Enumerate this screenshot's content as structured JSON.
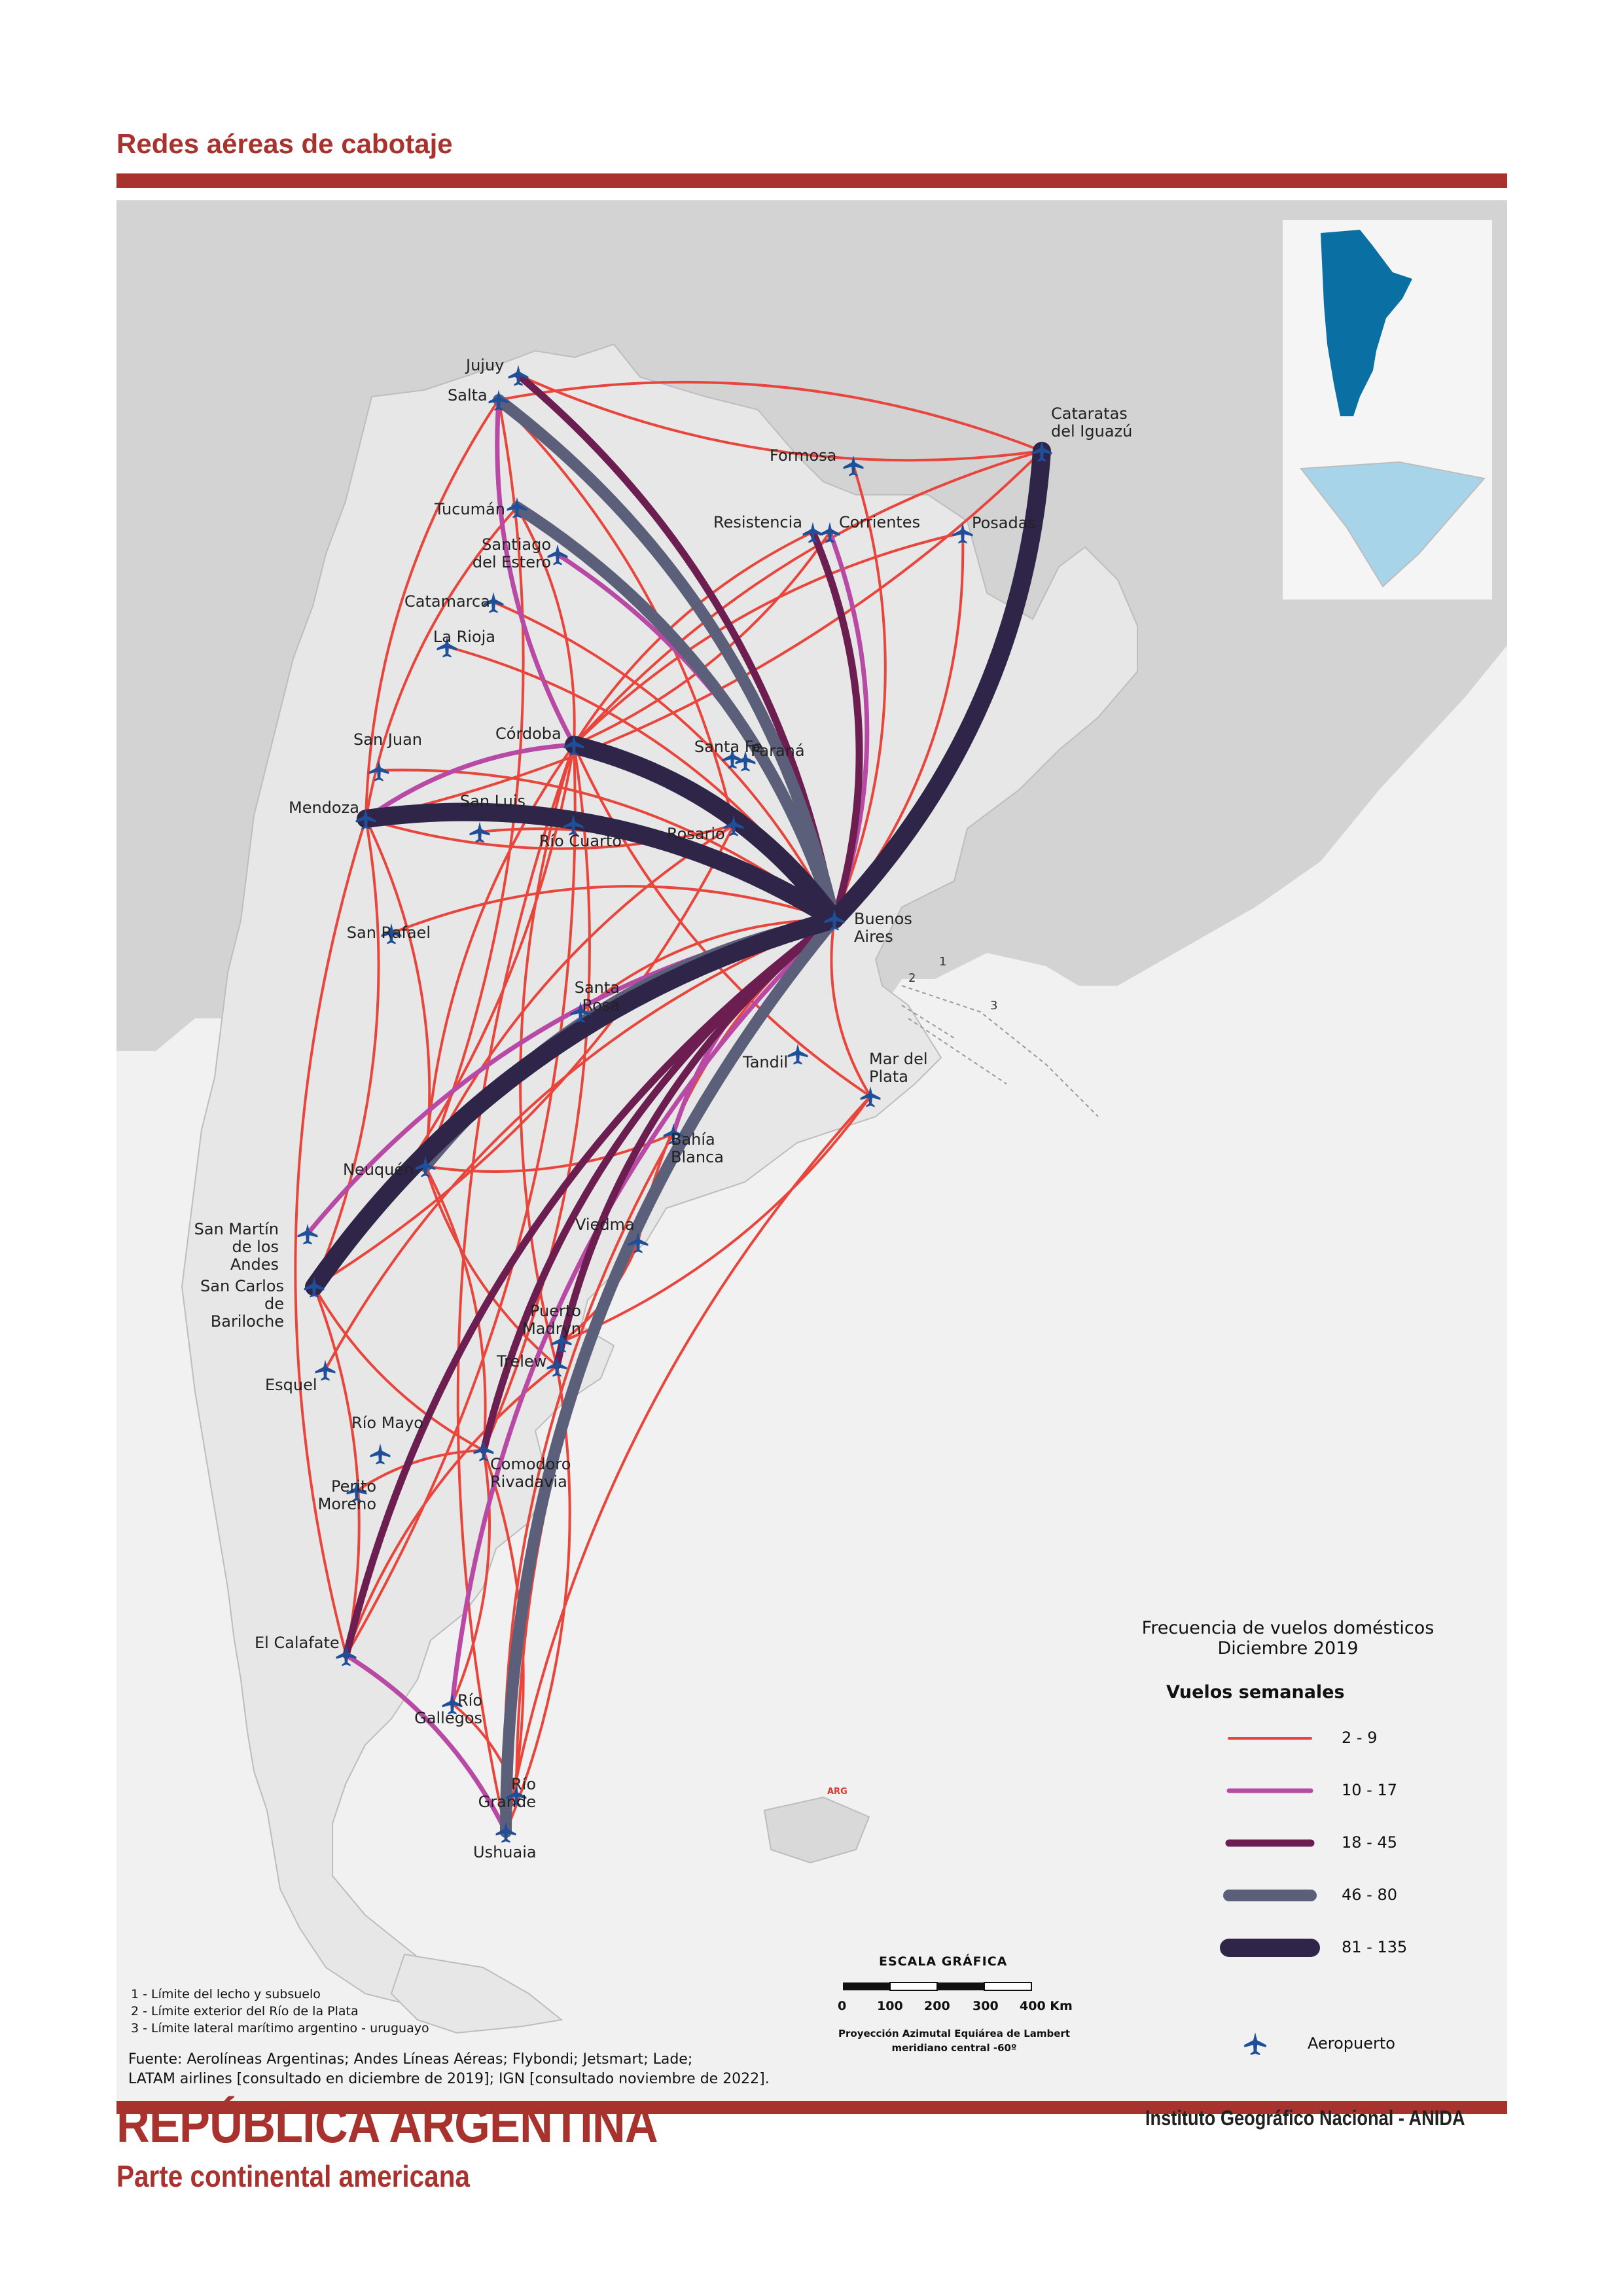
{
  "header": {
    "title": "Redes aéreas de cabotaje"
  },
  "footer": {
    "country": "REPÚBLICA ARGENTINA",
    "part": "Parte continental americana",
    "institute": "Instituto Geográfico Nacional - ANIDA"
  },
  "cities": [
    {
      "id": "jujuy",
      "label": "Jujuy"
    },
    {
      "id": "salta",
      "label": "Salta"
    },
    {
      "id": "cataratas",
      "label": "Cataratas del Iguazú"
    },
    {
      "id": "formosa",
      "label": "Formosa"
    },
    {
      "id": "resistencia",
      "label": "Resistencia"
    },
    {
      "id": "corrientes",
      "label": "Corrientes"
    },
    {
      "id": "posadas",
      "label": "Posadas"
    },
    {
      "id": "tucuman",
      "label": "Tucumán"
    },
    {
      "id": "santiago",
      "label": "Santiago del Estero"
    },
    {
      "id": "catamarca",
      "label": "Catamarca"
    },
    {
      "id": "larioja",
      "label": "La Rioja"
    },
    {
      "id": "cordoba",
      "label": "Córdoba"
    },
    {
      "id": "santafe",
      "label": "Santa Fe"
    },
    {
      "id": "parana",
      "label": "Paraná"
    },
    {
      "id": "sanjuan",
      "label": "San Juan"
    },
    {
      "id": "mendoza",
      "label": "Mendoza"
    },
    {
      "id": "sanluis",
      "label": "San Luis"
    },
    {
      "id": "riocuarto",
      "label": "Río Cuarto"
    },
    {
      "id": "rosario",
      "label": "Rosario"
    },
    {
      "id": "bsas",
      "label": "Buenos Aires"
    },
    {
      "id": "sanrafael",
      "label": "San Rafael"
    },
    {
      "id": "santarosa",
      "label": "Santa Rosa"
    },
    {
      "id": "tandil",
      "label": "Tandil"
    },
    {
      "id": "mardelplata",
      "label": "Mar del Plata"
    },
    {
      "id": "bahiablanca",
      "label": "Bahía Blanca"
    },
    {
      "id": "neuquen",
      "label": "Neuquén"
    },
    {
      "id": "sanmartin",
      "label": "San Martín de los Andes"
    },
    {
      "id": "viedma",
      "label": "Viedma"
    },
    {
      "id": "bariloche",
      "label": "San Carlos de Bariloche"
    },
    {
      "id": "madryn",
      "label": "Puerto Madryn"
    },
    {
      "id": "trelew",
      "label": "Trelew"
    },
    {
      "id": "esquel",
      "label": "Esquel"
    },
    {
      "id": "riomayo",
      "label": "Río Mayo"
    },
    {
      "id": "comodoro",
      "label": "Comodoro Rivadavia"
    },
    {
      "id": "peritomoreno",
      "label": "Perito Moreno"
    },
    {
      "id": "calafate",
      "label": "El Calafate"
    },
    {
      "id": "riogallegos",
      "label": "Río Gallegos"
    },
    {
      "id": "riogrande",
      "label": "Río Grande"
    },
    {
      "id": "ushuaia",
      "label": "Ushuaia"
    }
  ],
  "routes": [
    {
      "from": "bsas",
      "to": "cataratas",
      "cls": 5
    },
    {
      "from": "bsas",
      "to": "mendoza",
      "cls": 5
    },
    {
      "from": "bsas",
      "to": "cordoba",
      "cls": 5
    },
    {
      "from": "bsas",
      "to": "bariloche",
      "cls": 5
    },
    {
      "from": "bsas",
      "to": "salta",
      "cls": 4
    },
    {
      "from": "bsas",
      "to": "tucuman",
      "cls": 4
    },
    {
      "from": "bsas",
      "to": "neuquen",
      "cls": 4
    },
    {
      "from": "bsas",
      "to": "ushuaia",
      "cls": 4
    },
    {
      "from": "bsas",
      "to": "jujuy",
      "cls": 3
    },
    {
      "from": "bsas",
      "to": "resistencia",
      "cls": 3
    },
    {
      "from": "bsas",
      "to": "calafate",
      "cls": 3
    },
    {
      "from": "bsas",
      "to": "comodoro",
      "cls": 3
    },
    {
      "from": "bsas",
      "to": "trelew",
      "cls": 3
    },
    {
      "from": "bsas",
      "to": "riogallegos",
      "cls": 2
    },
    {
      "from": "bsas",
      "to": "corrientes",
      "cls": 2
    },
    {
      "from": "bsas",
      "to": "santiago",
      "cls": 2
    },
    {
      "from": "bsas",
      "to": "bahiablanca",
      "cls": 2
    },
    {
      "from": "mendoza",
      "to": "cordoba",
      "cls": 2
    },
    {
      "from": "salta",
      "to": "cordoba",
      "cls": 2
    },
    {
      "from": "calafate",
      "to": "ushuaia",
      "cls": 2
    },
    {
      "from": "bsas",
      "to": "sanmartin",
      "cls": 2
    },
    {
      "from": "bsas",
      "to": "posadas",
      "cls": 1
    },
    {
      "from": "bsas",
      "to": "formosa",
      "cls": 1
    },
    {
      "from": "bsas",
      "to": "sanjuan",
      "cls": 1
    },
    {
      "from": "bsas",
      "to": "larioja",
      "cls": 1
    },
    {
      "from": "bsas",
      "to": "catamarca",
      "cls": 1
    },
    {
      "from": "bsas",
      "to": "sanluis",
      "cls": 1
    },
    {
      "from": "bsas",
      "to": "santarosa",
      "cls": 1
    },
    {
      "from": "bsas",
      "to": "viedma",
      "cls": 1
    },
    {
      "from": "bsas",
      "to": "esquel",
      "cls": 1
    },
    {
      "from": "bsas",
      "to": "riogrande",
      "cls": 1
    },
    {
      "from": "bsas",
      "to": "mardelplata",
      "cls": 1
    },
    {
      "from": "bsas",
      "to": "sanrafael",
      "cls": 1
    },
    {
      "from": "cordoba",
      "to": "cataratas",
      "cls": 1
    },
    {
      "from": "cordoba",
      "to": "ushuaia",
      "cls": 1
    },
    {
      "from": "cordoba",
      "to": "bariloche",
      "cls": 1
    },
    {
      "from": "cordoba",
      "to": "neuquen",
      "cls": 1
    },
    {
      "from": "cordoba",
      "to": "comodoro",
      "cls": 1
    },
    {
      "from": "cordoba",
      "to": "trelew",
      "cls": 1
    },
    {
      "from": "cordoba",
      "to": "calafate",
      "cls": 1
    },
    {
      "from": "cordoba",
      "to": "mardelplata",
      "cls": 1
    },
    {
      "from": "cordoba",
      "to": "resistencia",
      "cls": 1
    },
    {
      "from": "cordoba",
      "to": "tucuman",
      "cls": 1
    },
    {
      "from": "rosario",
      "to": "mendoza",
      "cls": 1
    },
    {
      "from": "rosario",
      "to": "salta",
      "cls": 1
    },
    {
      "from": "rosario",
      "to": "bariloche",
      "cls": 1
    },
    {
      "from": "rosario",
      "to": "neuquen",
      "cls": 1
    },
    {
      "from": "salta",
      "to": "cataratas",
      "cls": 1
    },
    {
      "from": "salta",
      "to": "mendoza",
      "cls": 1
    },
    {
      "from": "salta",
      "to": "neuquen",
      "cls": 1
    },
    {
      "from": "jujuy",
      "to": "cataratas",
      "cls": 1
    },
    {
      "from": "mendoza",
      "to": "bariloche",
      "cls": 1
    },
    {
      "from": "mendoza",
      "to": "cataratas",
      "cls": 1
    },
    {
      "from": "mendoza",
      "to": "neuquen",
      "cls": 1
    },
    {
      "from": "mendoza",
      "to": "calafate",
      "cls": 1
    },
    {
      "from": "neuquen",
      "to": "comodoro",
      "cls": 1
    },
    {
      "from": "neuquen",
      "to": "trelew",
      "cls": 1
    },
    {
      "from": "bariloche",
      "to": "calafate",
      "cls": 1
    },
    {
      "from": "bariloche",
      "to": "comodoro",
      "cls": 1
    },
    {
      "from": "trelew",
      "to": "ushuaia",
      "cls": 1
    },
    {
      "from": "trelew",
      "to": "calafate",
      "cls": 1
    },
    {
      "from": "comodoro",
      "to": "riogallegos",
      "cls": 1
    },
    {
      "from": "comodoro",
      "to": "peritomoreno",
      "cls": 1
    },
    {
      "from": "comodoro",
      "to": "ushuaia",
      "cls": 1
    },
    {
      "from": "bahiablanca",
      "to": "ushuaia",
      "cls": 1
    },
    {
      "from": "bahiablanca",
      "to": "neuquen",
      "cls": 1
    },
    {
      "from": "mardelplata",
      "to": "ushuaia",
      "cls": 1
    },
    {
      "from": "mardelplata",
      "to": "madryn",
      "cls": 1
    },
    {
      "from": "tucuman",
      "to": "mendoza",
      "cls": 1
    },
    {
      "from": "corrientes",
      "to": "cordoba",
      "cls": 1
    },
    {
      "from": "posadas",
      "to": "cordoba",
      "cls": 1
    },
    {
      "from": "viedma",
      "to": "madryn",
      "cls": 1
    },
    {
      "from": "riogrande",
      "to": "riogallegos",
      "cls": 1
    }
  ],
  "legend": {
    "title": "Frecuencia de vuelos domésticos",
    "subtitle": "Diciembre 2019",
    "heading": "Vuelos semanales",
    "classes": [
      {
        "label": "2 - 9",
        "color": "#e8463c",
        "width": 4
      },
      {
        "label": "10 - 17",
        "color": "#b84aa5",
        "width": 7
      },
      {
        "label": "18 - 45",
        "color": "#6b1e4f",
        "width": 11
      },
      {
        "label": "46 - 80",
        "color": "#5b5f7a",
        "width": 18
      },
      {
        "label": "81 - 135",
        "color": "#2f2548",
        "width": 28
      }
    ],
    "airport": "Aeropuerto"
  },
  "notes": [
    "1 - Límite del lecho y subsuelo",
    "2 - Límite exterior del Río de la Plata",
    "3 - Límite lateral marítimo argentino - uruguayo"
  ],
  "source": [
    "Fuente: Aerolíneas Argentinas; Andes Líneas Aéreas; Flybondi; Jetsmart; Lade;",
    "LATAM airlines [consultado en diciembre de 2019]; IGN [consultado noviembre de 2022]."
  ],
  "scale": {
    "title": "ESCALA GRÁFICA",
    "ticks": [
      "0",
      "100",
      "200",
      "300",
      "400 Km"
    ],
    "proj1": "Proyección Azimutal Equiárea de Lambert",
    "proj2": "meridiano central -60º"
  },
  "boundary_labels": [
    "1",
    "2",
    "3"
  ],
  "arg_label": "ARG",
  "colors": {
    "accent": "#a8322d",
    "land": "#d9d9d9",
    "argentina": "#e6e6e6",
    "sea": "#f1f1f1",
    "airport": "#1f4f99",
    "inset": "#0a6fa3"
  }
}
